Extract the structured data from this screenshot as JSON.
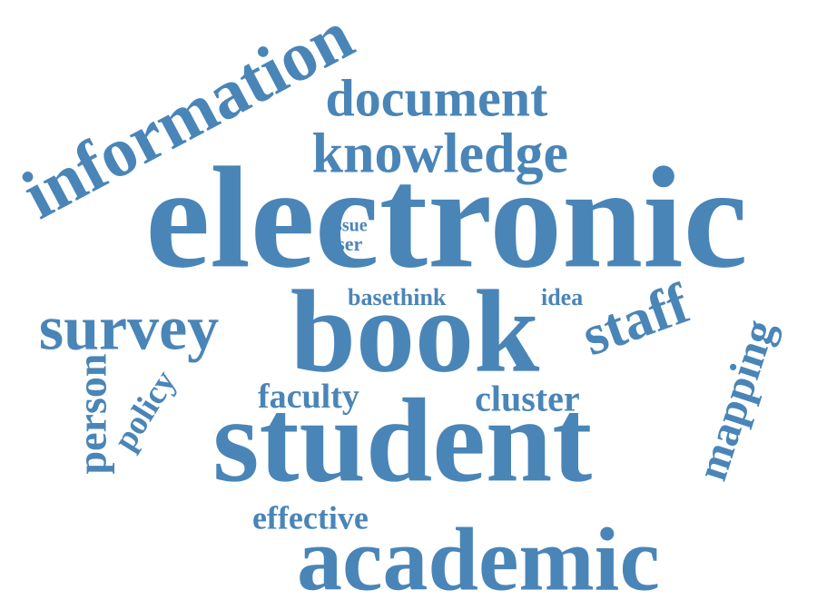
{
  "word_cloud": {
    "color": "#4a85b8",
    "words": {
      "electronic": "electronic",
      "book": "book",
      "student": "student",
      "academic": "academic",
      "information": "information",
      "document": "document",
      "knowledge": "knowledge",
      "survey": "survey",
      "staff": "staff",
      "mapping": "mapping",
      "faculty": "faculty",
      "cluster": "cluster",
      "basethink": "basethink",
      "idea": "idea",
      "issue": "issue",
      "user": "user",
      "person": "person",
      "policy": "policy",
      "effective": "effective"
    }
  }
}
